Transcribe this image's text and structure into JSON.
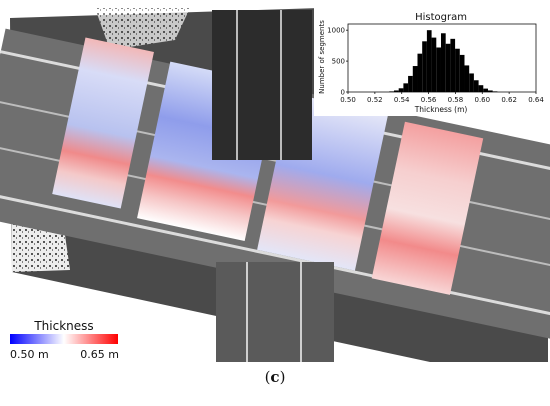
{
  "figure": {
    "caption_open": "(",
    "caption_letter": "c",
    "caption_close": ")"
  },
  "legend": {
    "title": "Thickness",
    "min_label": "0.50 m",
    "max_label": "0.65 m",
    "color_low": "#0000ff",
    "color_mid": "#ffffff",
    "color_high": "#ff0000"
  },
  "colors": {
    "pavement_dark": "#3d3d3d",
    "pavement_light": "#7a7a7a",
    "lane_marking": "#dcdcdc"
  },
  "chart_data": {
    "type": "bar",
    "title": "Histogram",
    "xlabel": "Thickness (m)",
    "ylabel": "Number of segments",
    "xlim": [
      0.5,
      0.64
    ],
    "ylim": [
      0,
      1100
    ],
    "xticks": [
      "0.50",
      "0.52",
      "0.54",
      "0.56",
      "0.58",
      "0.60",
      "0.62",
      "0.64"
    ],
    "yticks": [
      "0",
      "500",
      "1000"
    ],
    "bin_width": 0.0035,
    "x": [
      0.5325,
      0.536,
      0.5395,
      0.543,
      0.5465,
      0.55,
      0.5535,
      0.557,
      0.5605,
      0.564,
      0.5675,
      0.571,
      0.5745,
      0.578,
      0.5815,
      0.585,
      0.5885,
      0.592,
      0.5955,
      0.599,
      0.6025,
      0.606,
      0.6095
    ],
    "values": [
      10,
      25,
      60,
      140,
      260,
      420,
      620,
      820,
      1000,
      880,
      720,
      950,
      780,
      860,
      700,
      600,
      430,
      300,
      190,
      110,
      55,
      25,
      10
    ]
  }
}
